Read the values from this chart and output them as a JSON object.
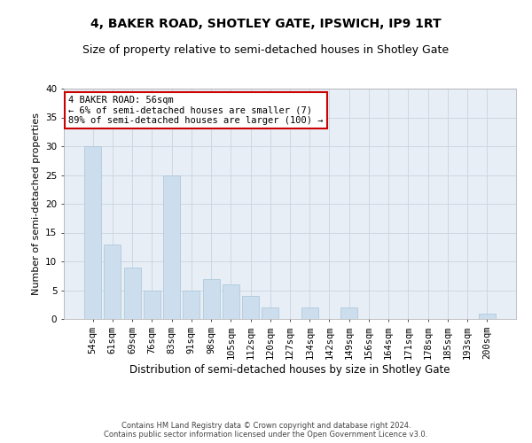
{
  "title": "4, BAKER ROAD, SHOTLEY GATE, IPSWICH, IP9 1RT",
  "subtitle": "Size of property relative to semi-detached houses in Shotley Gate",
  "xlabel": "Distribution of semi-detached houses by size in Shotley Gate",
  "ylabel": "Number of semi-detached properties",
  "footer_line1": "Contains HM Land Registry data © Crown copyright and database right 2024.",
  "footer_line2": "Contains public sector information licensed under the Open Government Licence v3.0.",
  "categories": [
    "54sqm",
    "61sqm",
    "69sqm",
    "76sqm",
    "83sqm",
    "91sqm",
    "98sqm",
    "105sqm",
    "112sqm",
    "120sqm",
    "127sqm",
    "134sqm",
    "142sqm",
    "149sqm",
    "156sqm",
    "164sqm",
    "171sqm",
    "178sqm",
    "185sqm",
    "193sqm",
    "200sqm"
  ],
  "values": [
    30,
    13,
    9,
    5,
    25,
    5,
    7,
    6,
    4,
    2,
    0,
    2,
    0,
    2,
    0,
    0,
    0,
    0,
    0,
    0,
    1
  ],
  "bar_color": "#ccdded",
  "bar_edge_color": "#a8c4d8",
  "annotation_text": "4 BAKER ROAD: 56sqm\n← 6% of semi-detached houses are smaller (7)\n89% of semi-detached houses are larger (100) →",
  "annotation_box_color": "#ffffff",
  "annotation_box_edge_color": "#cc0000",
  "ylim": [
    0,
    40
  ],
  "yticks": [
    0,
    5,
    10,
    15,
    20,
    25,
    30,
    35,
    40
  ],
  "grid_color": "#c8d4e0",
  "bg_color": "#e8eef5",
  "title_fontsize": 10,
  "subtitle_fontsize": 9,
  "xlabel_fontsize": 8.5,
  "ylabel_fontsize": 8,
  "tick_fontsize": 7.5,
  "annotation_fontsize": 7.5,
  "footer_fontsize": 6
}
